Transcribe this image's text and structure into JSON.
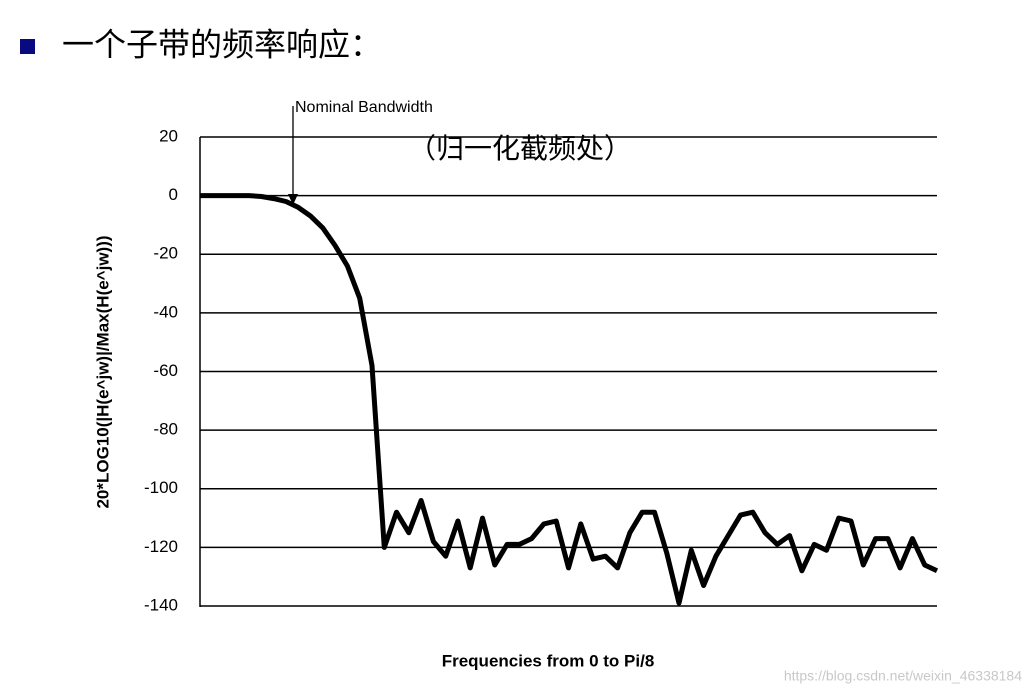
{
  "header": {
    "title": "一个子带的频率响应："
  },
  "chart_data": {
    "type": "line",
    "ylabel": "20*LOG10(|H(e^jw)|/Max(H(e^jw)))",
    "xlabel": "Frequencies from 0 to Pi/8",
    "annotations": [
      "Nominal Bandwidth",
      "（归一化截频处）"
    ],
    "categories": [
      null,
      null,
      null,
      null,
      null,
      null,
      null,
      null,
      null,
      null,
      null,
      null,
      null,
      null,
      null,
      null,
      null,
      null,
      null,
      null,
      null,
      null,
      null,
      null,
      null,
      null,
      null,
      null,
      null,
      null,
      null,
      null,
      null,
      null,
      null,
      null,
      null,
      null,
      null,
      null,
      null,
      null,
      null,
      null,
      null,
      null,
      null,
      null,
      null,
      null,
      null,
      null,
      null,
      null,
      null,
      null,
      null,
      null,
      null,
      null,
      null
    ],
    "values": [
      0,
      0,
      0,
      0,
      0,
      -0.3,
      -1,
      -2,
      -4,
      -7,
      -11,
      -17,
      -24,
      -35,
      -58,
      -120,
      -108,
      -115,
      -104,
      -118,
      -123,
      -111,
      -127,
      -110,
      -126,
      -119,
      -119,
      -117,
      -112,
      -111,
      -127,
      -112,
      -124,
      -123,
      -127,
      -115,
      -108,
      -108,
      -122,
      -139,
      -121,
      -133,
      -123,
      -116,
      -109,
      -108,
      -115,
      -119,
      -116,
      -128,
      -119,
      -121,
      -110,
      -111,
      -126,
      -117,
      -117,
      -127,
      -117,
      -126,
      -128
    ],
    "color": "#000000",
    "ylim": [
      -140,
      20
    ],
    "yticks": [
      20,
      0,
      -20,
      -40,
      -60,
      -80,
      -100,
      -120,
      -140
    ],
    "grid": true
  },
  "watermark": "https://blog.csdn.net/weixin_46338184"
}
